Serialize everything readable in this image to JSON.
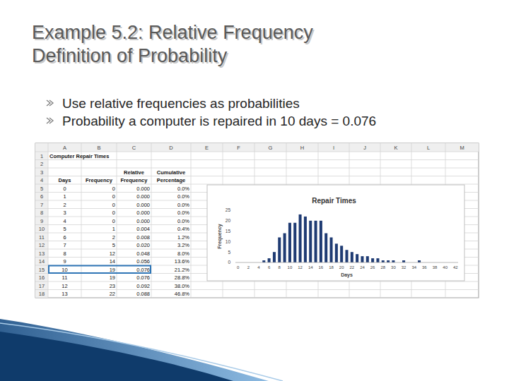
{
  "slide": {
    "title_lines": [
      "Example 5.2: Relative Frequency",
      "Definition of Probability"
    ],
    "bullets": [
      "Use relative frequencies as probabilities",
      "Probability a computer is repaired in 10 days = 0.076"
    ]
  },
  "sheet": {
    "columns": [
      "A",
      "B",
      "C",
      "D",
      "E",
      "F",
      "G",
      "H",
      "I",
      "J",
      "K",
      "L",
      "M"
    ],
    "row_numbers": [
      1,
      2,
      3,
      4,
      5,
      6,
      7,
      8,
      9,
      10,
      11,
      12,
      13,
      14,
      15,
      16,
      17,
      18
    ],
    "caption": "Computer Repair Times",
    "header_upper": [
      "Relative",
      "Cumulative"
    ],
    "headers": [
      "Days",
      "Frequency",
      "Frequency",
      "Percentage"
    ],
    "rows": [
      [
        "0",
        "0",
        "0.000",
        "0.0%"
      ],
      [
        "1",
        "0",
        "0.000",
        "0.0%"
      ],
      [
        "2",
        "0",
        "0.000",
        "0.0%"
      ],
      [
        "3",
        "0",
        "0.000",
        "0.0%"
      ],
      [
        "4",
        "0",
        "0.000",
        "0.0%"
      ],
      [
        "5",
        "1",
        "0.004",
        "0.4%"
      ],
      [
        "6",
        "2",
        "0.008",
        "1.2%"
      ],
      [
        "7",
        "5",
        "0.020",
        "3.2%"
      ],
      [
        "8",
        "12",
        "0.048",
        "8.0%"
      ],
      [
        "9",
        "14",
        "0.056",
        "13.6%"
      ],
      [
        "10",
        "19",
        "0.076",
        "21.2%"
      ],
      [
        "11",
        "19",
        "0.076",
        "28.8%"
      ],
      [
        "12",
        "23",
        "0.092",
        "38.0%"
      ],
      [
        "13",
        "22",
        "0.088",
        "46.8%"
      ]
    ]
  },
  "chart_data": {
    "type": "bar",
    "title": "Repair Times",
    "x_label": "Days",
    "y_label": "Frequency",
    "categories": [
      0,
      null,
      2,
      null,
      4,
      null,
      6,
      null,
      8,
      null,
      10,
      null,
      12,
      null,
      14,
      null,
      16,
      null,
      18,
      null,
      20,
      null,
      22,
      null,
      24,
      null,
      26,
      null,
      28,
      null,
      30,
      null,
      32,
      null,
      34,
      null,
      36,
      null,
      38,
      null,
      40,
      null,
      42
    ],
    "values": [
      0,
      0,
      0,
      0,
      0,
      1,
      2,
      5,
      12,
      14,
      19,
      19,
      23,
      22,
      20,
      20,
      20,
      14,
      12,
      9,
      8,
      6,
      5,
      4,
      3,
      3,
      2,
      2,
      1,
      1,
      1,
      0,
      1,
      0,
      0,
      1,
      0,
      0,
      0,
      0,
      0,
      0,
      0
    ],
    "color": "#1f3b73",
    "ylim": [
      0,
      25
    ],
    "yticks": [
      0,
      5,
      10,
      15,
      20,
      25
    ],
    "grid": false
  }
}
